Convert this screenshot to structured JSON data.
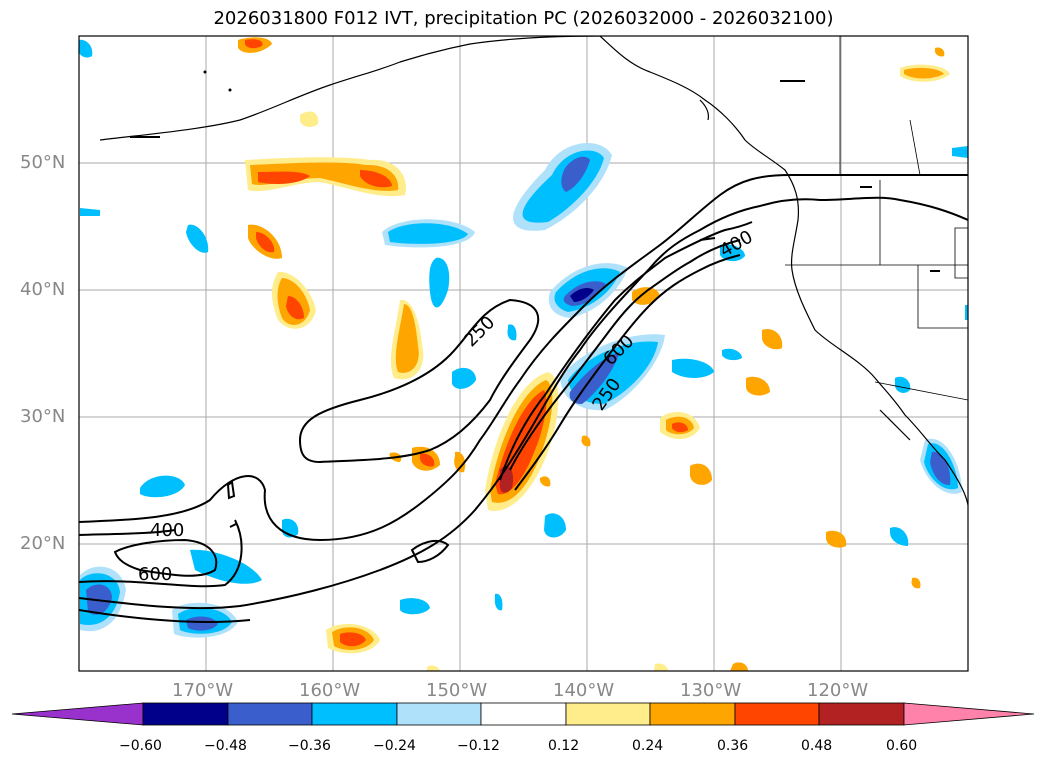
{
  "title": "2026031800 F012 IVT, precipitation PC (2026032000 - 2026032100)",
  "map": {
    "lat_labels": [
      {
        "value": 50,
        "text": "50°N"
      },
      {
        "value": 40,
        "text": "40°N"
      },
      {
        "value": 30,
        "text": "30°N"
      },
      {
        "value": 20,
        "text": "20°N"
      }
    ],
    "lon_labels": [
      {
        "value": -170,
        "text": "170°W"
      },
      {
        "value": -160,
        "text": "160°W"
      },
      {
        "value": -150,
        "text": "150°W"
      },
      {
        "value": -140,
        "text": "140°W"
      },
      {
        "value": -130,
        "text": "130°W"
      },
      {
        "value": -120,
        "text": "120°W"
      }
    ],
    "extent": {
      "lon_min": -180,
      "lon_max": -110,
      "lat_min": 10,
      "lat_max": 60
    },
    "ivt_contour_labels": [
      "250",
      "250",
      "400",
      "400",
      "600",
      "600"
    ]
  },
  "colorbar": {
    "ticks": [
      "−0.60",
      "−0.48",
      "−0.36",
      "−0.24",
      "−0.12",
      "0.12",
      "0.24",
      "0.36",
      "0.48",
      "0.60"
    ],
    "colors": [
      "#9932cc",
      "#00008b",
      "#3a5fcd",
      "#00bfff",
      "#afe1fa",
      "#ffffff",
      "#ffec8b",
      "#ffa500",
      "#ff4500",
      "#b22222",
      "#ff82ab"
    ]
  }
}
